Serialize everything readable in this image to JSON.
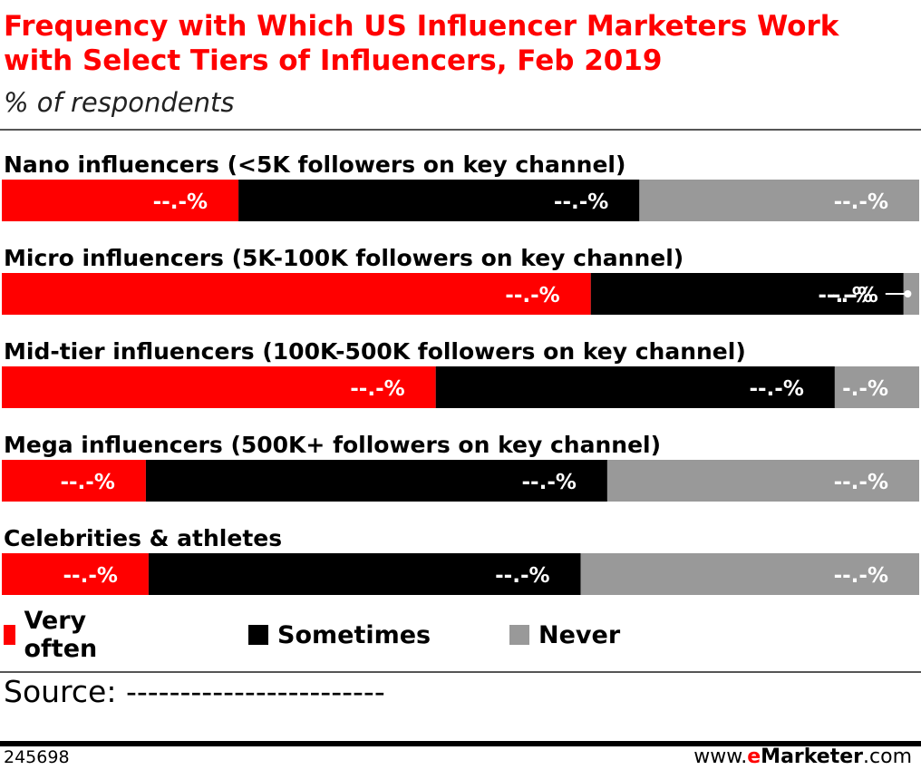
{
  "header": {
    "title": "Frequency with Which US Influencer Marketers Work with Select Tiers of Influencers, Feb 2019",
    "subtitle": "% of respondents"
  },
  "colors": {
    "very_often": "#ff0000",
    "sometimes": "#000000",
    "never": "#999999"
  },
  "chart_data": {
    "type": "bar",
    "orientation": "horizontal",
    "stacked": true,
    "normalized": true,
    "categories": [
      "Nano influencers (<5K followers on key channel)",
      "Micro influencers (5K-100K followers on key channel)",
      "Mid-tier influencers (100K-500K followers on key channel)",
      "Mega influencers (500K+ followers on key channel)",
      "Celebrities & athletes"
    ],
    "series": [
      {
        "name": "Very often",
        "values": [
          25.8,
          64.2,
          47.3,
          15.7,
          16.0
        ],
        "labels": [
          "--.-%",
          "--.-%",
          "--.-%",
          "--.-%",
          "--.-%"
        ]
      },
      {
        "name": "Sometimes",
        "values": [
          43.7,
          34.1,
          43.5,
          50.3,
          47.1
        ],
        "labels": [
          "--.-%",
          "--.-%",
          "--.-%",
          "--.-%",
          "--.-%"
        ]
      },
      {
        "name": "Never",
        "values": [
          30.5,
          1.7,
          9.2,
          34.0,
          36.9
        ],
        "labels": [
          "--.-%",
          "-.-%",
          "-.-%",
          "--.-%",
          "--.-%"
        ]
      }
    ],
    "extra_marks": {
      "micro_sometimes_second_label": "-.-%"
    },
    "legend_position": "bottom",
    "grid": false
  },
  "legend": [
    {
      "name": "Very often",
      "color": "#ff0000"
    },
    {
      "name": "Sometimes",
      "color": "#000000"
    },
    {
      "name": "Never",
      "color": "#999999"
    }
  ],
  "footer": {
    "source": "Source: ------------------------",
    "id": "245698",
    "brand_prefix": "www.",
    "brand_e": "e",
    "brand_name": "Marketer",
    "brand_suffix": ".com"
  }
}
